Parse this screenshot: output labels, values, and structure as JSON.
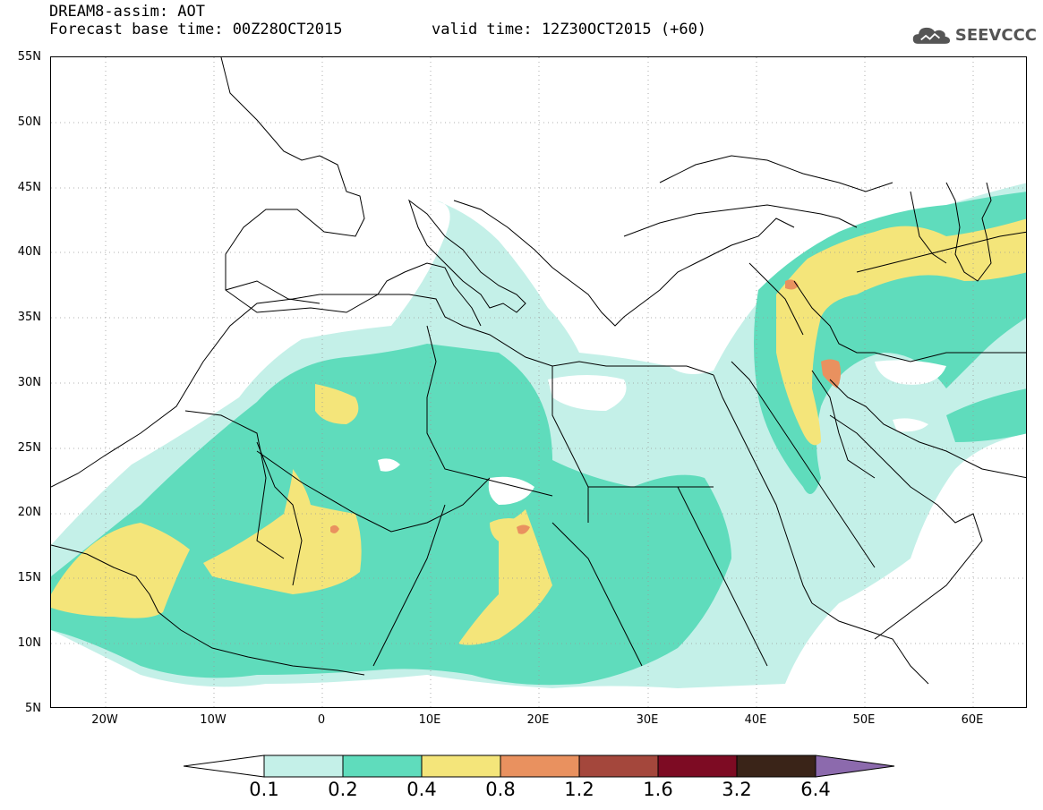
{
  "header": {
    "title_line1": "DREAM8-assim: AOT",
    "title_line2": "Forecast base time: 00Z28OCT2015",
    "valid_time": "valid time: 12Z30OCT2015 (+60)"
  },
  "logo": {
    "text": "SEEVCCC",
    "icon": "cloud-icon"
  },
  "map": {
    "latitude_labels": [
      "55N",
      "50N",
      "45N",
      "40N",
      "35N",
      "30N",
      "25N",
      "20N",
      "15N",
      "10N",
      "5N"
    ],
    "longitude_labels": [
      "20W",
      "10W",
      "0",
      "10E",
      "20E",
      "30E",
      "40E",
      "50E",
      "60E"
    ],
    "lon_range": [
      -25,
      65
    ],
    "lat_range": [
      5,
      55
    ],
    "grid": "dotted"
  },
  "legend": {
    "labels": [
      "0.1",
      "0.2",
      "0.4",
      "0.8",
      "1.2",
      "1.6",
      "3.2",
      "6.4"
    ],
    "colors": [
      "#ffffff",
      "#c4f0e8",
      "#5fdcbc",
      "#f4e57a",
      "#e9915f",
      "#a4473c",
      "#7d0b23",
      "#3a2418",
      "#8c6aad"
    ]
  }
}
